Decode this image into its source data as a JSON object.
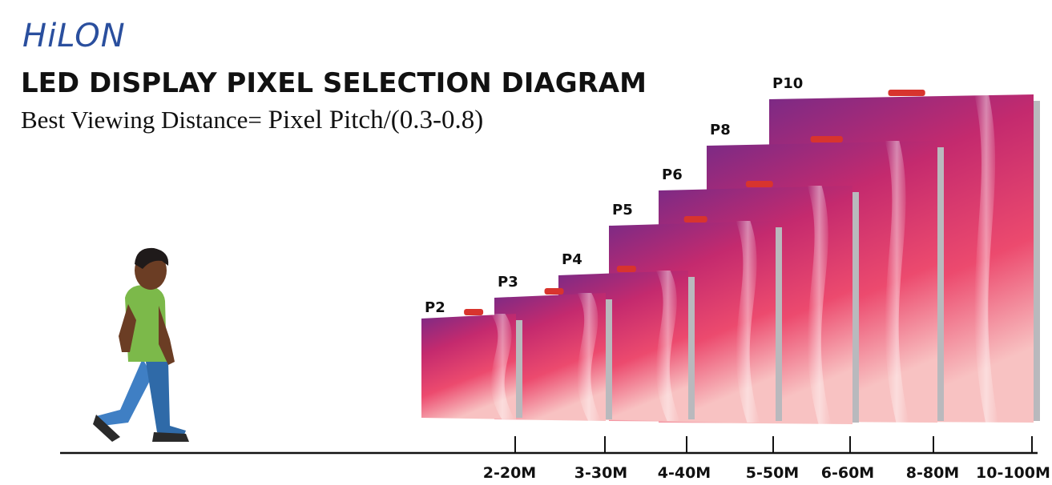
{
  "brand": {
    "logo_text": "HiLON"
  },
  "header": {
    "title": "LED DISPLAY PIXEL SELECTION DIAGRAM",
    "formula_lhs": "Best Viewing Distance=",
    "formula_rhs": "Pixel Pitch/(0.3-0.8)"
  },
  "displays": [
    {
      "pitch": "P2",
      "distance": "2-20M"
    },
    {
      "pitch": "P3",
      "distance": "3-30M"
    },
    {
      "pitch": "P4",
      "distance": "4-40M"
    },
    {
      "pitch": "P5",
      "distance": "5-50M"
    },
    {
      "pitch": "P6",
      "distance": "6-60M"
    },
    {
      "pitch": "P8",
      "distance": "8-80M"
    },
    {
      "pitch": "P10",
      "distance": "10-100M"
    }
  ],
  "colors": {
    "logo": "#2a4f9e",
    "panel_top": "#8a2b8f",
    "panel_mid": "#e8306a",
    "panel_bottom": "#f6b0b4",
    "shirt": "#7cb94a",
    "pants": "#3f7fc4",
    "skin": "#6b3d24"
  }
}
